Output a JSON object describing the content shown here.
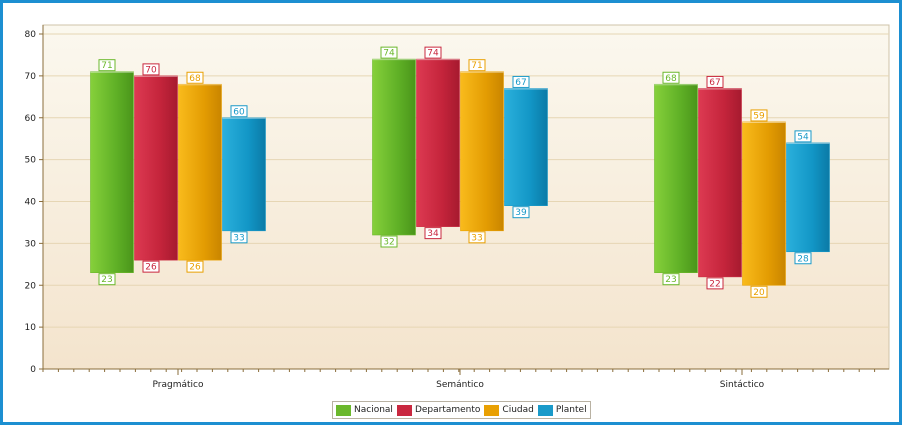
{
  "chart_data": {
    "type": "bar",
    "subtype": "range",
    "categories": [
      "Pragmático",
      "Semántico",
      "Sintáctico"
    ],
    "series": [
      {
        "name": "Nacional",
        "color": "#6bb82c",
        "low": [
          23,
          32,
          23
        ],
        "high": [
          71,
          74,
          68
        ]
      },
      {
        "name": "Departamento",
        "color": "#c9283f",
        "low": [
          26,
          34,
          22
        ],
        "high": [
          70,
          74,
          67
        ]
      },
      {
        "name": "Ciudad",
        "color": "#e9a002",
        "low": [
          26,
          33,
          20
        ],
        "high": [
          68,
          71,
          59
        ]
      },
      {
        "name": "Plantel",
        "color": "#1a9ac9",
        "low": [
          33,
          39,
          28
        ],
        "high": [
          60,
          67,
          54
        ]
      }
    ],
    "ylim": [
      0,
      80
    ],
    "yticks": [
      0,
      10,
      20,
      30,
      40,
      50,
      60,
      70,
      80
    ],
    "grid": true,
    "legend_position": "bottom-center"
  }
}
